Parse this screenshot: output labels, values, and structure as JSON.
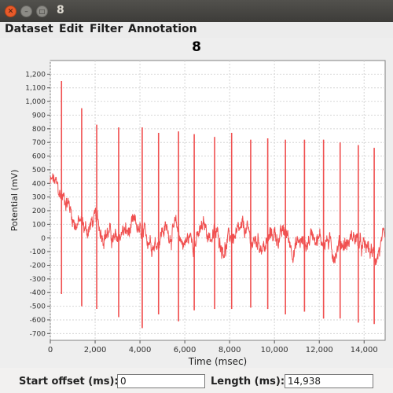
{
  "window": {
    "title": "8",
    "buttons": {
      "close": "✕",
      "minimize": "–",
      "maximize": "□"
    }
  },
  "menu": [
    "Dataset",
    "Edit",
    "Filter",
    "Annotation"
  ],
  "plot": {
    "title": "8",
    "colors": {
      "line": "#f05050",
      "grid": "#d6d6d6",
      "background": "#ffffff",
      "axis": "#808080"
    }
  },
  "chart_data": {
    "type": "line",
    "title": "8",
    "xlabel": "Time (msec)",
    "ylabel": "Potential (mV)",
    "xlim": [
      0,
      14938
    ],
    "ylim": [
      -750,
      1300
    ],
    "x_ticks": [
      0,
      2000,
      4000,
      6000,
      8000,
      10000,
      12000,
      14000
    ],
    "x_tick_labels": [
      "0",
      "2,000",
      "4,000",
      "6,000",
      "8,000",
      "10,000",
      "12,000",
      "14,000"
    ],
    "y_ticks": [
      -700,
      -600,
      -500,
      -400,
      -300,
      -200,
      -100,
      0,
      100,
      200,
      300,
      400,
      500,
      600,
      700,
      800,
      900,
      1000,
      1100,
      1200
    ],
    "y_tick_labels": [
      "-700",
      "-600",
      "-500",
      "-400",
      "-300",
      "-200",
      "-100",
      "0",
      "100",
      "200",
      "300",
      "400",
      "500",
      "600",
      "700",
      "800",
      "900",
      "1,000",
      "1,100",
      "1,200"
    ],
    "grid": true,
    "series": [
      {
        "spikes": [
          {
            "t": 500,
            "max": 1150,
            "min": -410
          },
          {
            "t": 1400,
            "max": 950,
            "min": -500
          },
          {
            "t": 2070,
            "max": 830,
            "min": -520
          },
          {
            "t": 3050,
            "max": 810,
            "min": -580
          },
          {
            "t": 4100,
            "max": 810,
            "min": -660
          },
          {
            "t": 4830,
            "max": 770,
            "min": -560
          },
          {
            "t": 5720,
            "max": 780,
            "min": -610
          },
          {
            "t": 6420,
            "max": 760,
            "min": -530
          },
          {
            "t": 7330,
            "max": 740,
            "min": -520
          },
          {
            "t": 8090,
            "max": 770,
            "min": -520
          },
          {
            "t": 8940,
            "max": 720,
            "min": -510
          },
          {
            "t": 9700,
            "max": 730,
            "min": -520
          },
          {
            "t": 10490,
            "max": 720,
            "min": -560
          },
          {
            "t": 11340,
            "max": 720,
            "min": -540
          },
          {
            "t": 12190,
            "max": 720,
            "min": -590
          },
          {
            "t": 12930,
            "max": 700,
            "min": -590
          },
          {
            "t": 13740,
            "max": 680,
            "min": -620
          },
          {
            "t": 14450,
            "max": 660,
            "min": -630
          }
        ],
        "baseline": [
          {
            "t": 0,
            "v": 400
          },
          {
            "t": 400,
            "v": 300
          },
          {
            "t": 900,
            "v": 220
          },
          {
            "t": 1500,
            "v": 90
          },
          {
            "t": 2500,
            "v": 40
          },
          {
            "t": 4000,
            "v": 20
          },
          {
            "t": 6000,
            "v": 20
          },
          {
            "t": 8000,
            "v": 0
          },
          {
            "t": 10000,
            "v": -10
          },
          {
            "t": 12000,
            "v": -20
          },
          {
            "t": 14000,
            "v": -60
          },
          {
            "t": 14938,
            "v": -100
          }
        ]
      }
    ]
  },
  "controls": {
    "start_offset": {
      "label": "Start offset (ms):",
      "value": "0"
    },
    "length": {
      "label": "Length (ms):",
      "value": "14,938"
    }
  }
}
